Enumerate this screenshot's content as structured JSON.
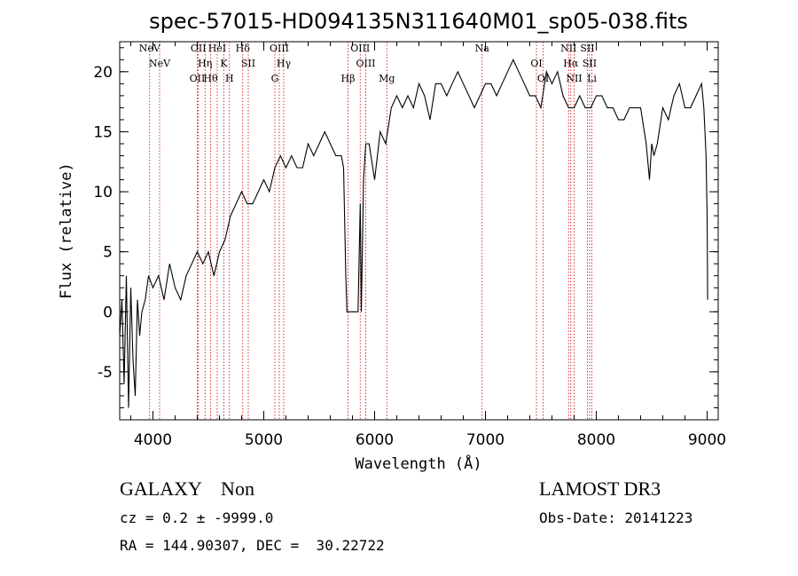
{
  "chart_data": {
    "type": "line",
    "title": "spec-57015-HD094135N311640M01_sp05-038.fits",
    "xlabel": "Wavelength (Å)",
    "ylabel": "Flux (relative)",
    "xlim": [
      3700,
      9100
    ],
    "ylim": [
      -9,
      22.5
    ],
    "xticks": [
      4000,
      5000,
      6000,
      7000,
      8000,
      9000
    ],
    "yticks": [
      -5,
      0,
      5,
      10,
      15,
      20
    ],
    "grid": false,
    "series": [
      {
        "color": "#000000",
        "x": [
          3700,
          3720,
          3740,
          3760,
          3780,
          3800,
          3820,
          3840,
          3860,
          3880,
          3900,
          3930,
          3960,
          4000,
          4050,
          4100,
          4150,
          4200,
          4250,
          4300,
          4350,
          4400,
          4450,
          4500,
          4550,
          4600,
          4650,
          4700,
          4750,
          4800,
          4850,
          4900,
          4950,
          5000,
          5050,
          5100,
          5150,
          5200,
          5250,
          5300,
          5350,
          5400,
          5450,
          5500,
          5550,
          5600,
          5650,
          5700,
          5720,
          5740,
          5750,
          5760,
          5780,
          5800,
          5820,
          5850,
          5870,
          5880,
          5900,
          5920,
          5950,
          6000,
          6050,
          6100,
          6150,
          6200,
          6250,
          6300,
          6350,
          6400,
          6450,
          6500,
          6550,
          6600,
          6650,
          6700,
          6750,
          6800,
          6850,
          6900,
          6950,
          7000,
          7050,
          7100,
          7150,
          7200,
          7250,
          7300,
          7350,
          7400,
          7450,
          7500,
          7550,
          7600,
          7650,
          7700,
          7750,
          7800,
          7850,
          7900,
          7950,
          8000,
          8050,
          8100,
          8150,
          8200,
          8250,
          8300,
          8350,
          8400,
          8450,
          8480,
          8500,
          8520,
          8550,
          8600,
          8650,
          8700,
          8750,
          8800,
          8850,
          8900,
          8950,
          8970,
          8990,
          9000,
          9005
        ],
        "y": [
          -2,
          1,
          -6,
          3,
          -8,
          2,
          -4,
          -7,
          1,
          -2,
          0,
          1,
          3,
          2,
          3,
          1,
          4,
          2,
          1,
          3,
          4,
          5,
          4,
          5,
          3,
          5,
          6,
          8,
          9,
          10,
          9,
          9,
          10,
          11,
          10,
          12,
          13,
          12,
          13,
          12,
          12,
          14,
          13,
          14,
          15,
          14,
          13,
          13,
          12,
          3,
          0,
          0,
          0,
          0,
          0,
          0,
          9,
          0,
          11,
          14,
          14,
          11,
          15,
          14,
          17,
          18,
          17,
          18,
          17,
          19,
          18,
          16,
          19,
          19,
          18,
          19,
          20,
          19,
          18,
          17,
          18,
          19,
          19,
          18,
          19,
          20,
          21,
          20,
          19,
          18,
          18,
          17,
          20,
          19,
          20,
          18,
          17,
          17,
          18,
          17,
          17,
          18,
          18,
          17,
          17,
          16,
          16,
          17,
          17,
          17,
          14,
          11,
          14,
          13,
          14,
          17,
          16,
          18,
          19,
          17,
          17,
          18,
          19,
          17,
          13,
          8,
          1
        ]
      }
    ],
    "lines": [
      {
        "x": 3970,
        "label": "NeV"
      },
      {
        "x": 4060,
        "label": "NeV"
      },
      {
        "x": 4400,
        "label": "OII"
      },
      {
        "x": 4410,
        "label": "OII"
      },
      {
        "x": 4470,
        "label": "Hη"
      },
      {
        "x": 4520,
        "label": "Hθ"
      },
      {
        "x": 4580,
        "label": "HeI"
      },
      {
        "x": 4640,
        "label": "K"
      },
      {
        "x": 4690,
        "label": "H"
      },
      {
        "x": 4810,
        "label": "Hδ"
      },
      {
        "x": 4860,
        "label": "SII"
      },
      {
        "x": 5100,
        "label": "G"
      },
      {
        "x": 5140,
        "label": "OIII"
      },
      {
        "x": 5180,
        "label": "Hγ"
      },
      {
        "x": 5760,
        "label": "Hβ"
      },
      {
        "x": 5870,
        "label": "OIII"
      },
      {
        "x": 5920,
        "label": "OIII"
      },
      {
        "x": 6110,
        "label": "Mg"
      },
      {
        "x": 6970,
        "label": "Na"
      },
      {
        "x": 7460,
        "label": "OI"
      },
      {
        "x": 7520,
        "label": "OI"
      },
      {
        "x": 7750,
        "label": "NII"
      },
      {
        "x": 7770,
        "label": "Hα"
      },
      {
        "x": 7800,
        "label": "NII"
      },
      {
        "x": 7920,
        "label": "SII"
      },
      {
        "x": 7940,
        "label": "SII"
      },
      {
        "x": 7960,
        "label": "Li"
      }
    ]
  },
  "info": {
    "class_line": "GALAXY    Non",
    "cz_line": "cz = 0.2 ± -9999.0",
    "coords_line": "RA = 144.90307, DEC =  30.22722",
    "survey": "LAMOST DR3",
    "obs_date": "Obs-Date: 20141223"
  }
}
